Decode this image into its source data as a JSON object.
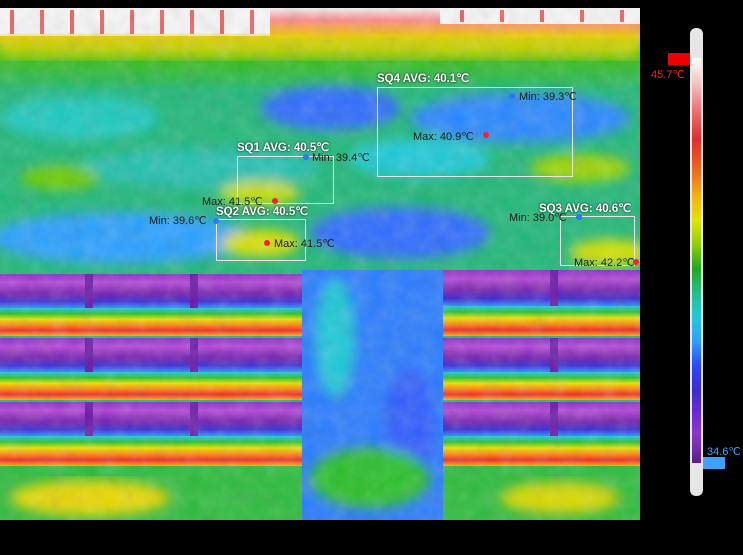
{
  "scale": {
    "max_label": "45.7℃",
    "min_label": "34.6℃",
    "max_color": "#ff2020",
    "min_color": "#39a8ff"
  },
  "regions": [
    {
      "id": "SQ1",
      "label": "SQ1 AVG: 40.5℃",
      "min_label": "Min: 39.4℃",
      "max_label": "Max: 41.5℃"
    },
    {
      "id": "SQ2",
      "label": "SQ2 AVG: 40.5℃",
      "min_label": "Min: 39.6℃",
      "max_label": "Max: 41.5℃"
    },
    {
      "id": "SQ3",
      "label": "SQ3 AVG: 40.6℃",
      "min_label": "Min: 39.0℃",
      "max_label": "Max: 42.2℃"
    },
    {
      "id": "SQ4",
      "label": "SQ4 AVG: 40.1℃",
      "min_label": "Min: 39.3℃",
      "max_label": "Max: 40.9℃"
    }
  ]
}
